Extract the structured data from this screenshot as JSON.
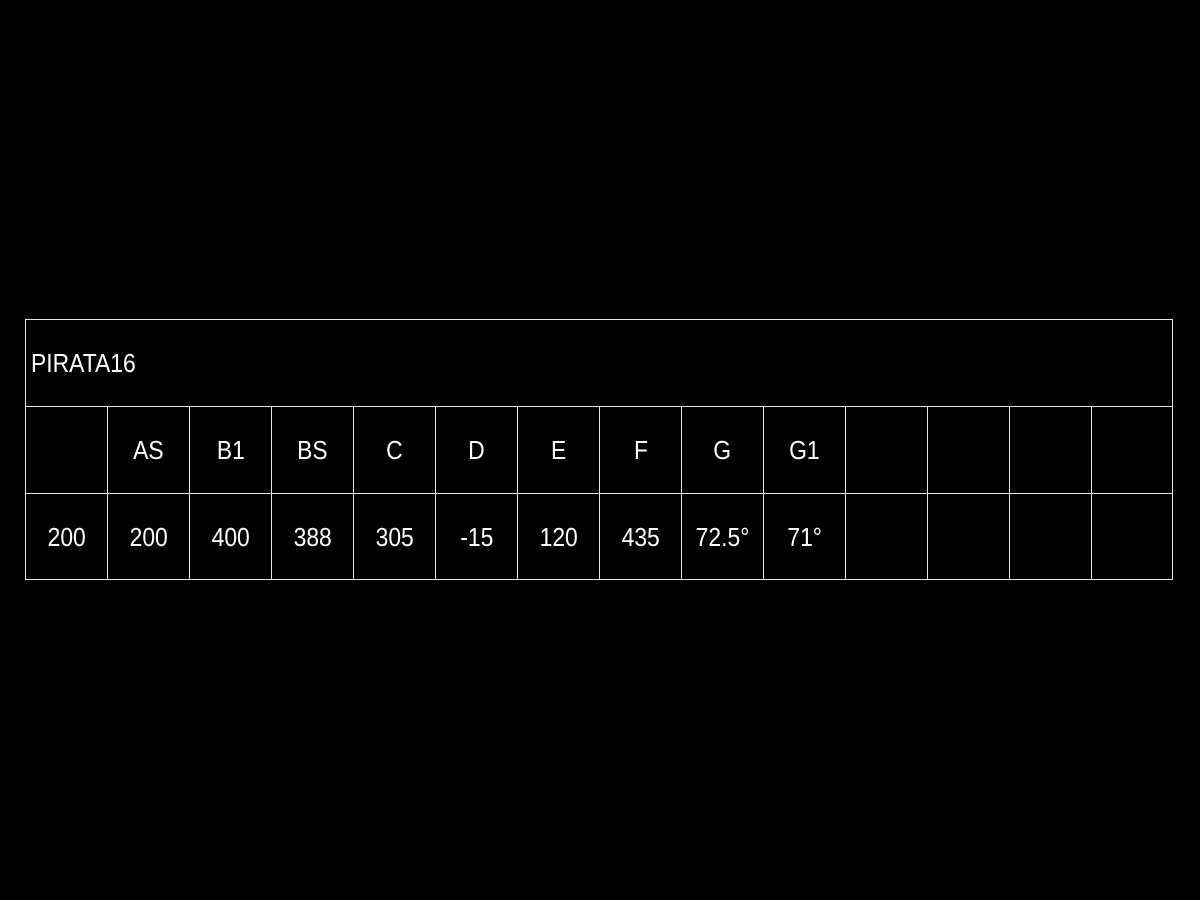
{
  "title": "PIRATA16",
  "headers": [
    "",
    "AS",
    "B1",
    "BS",
    "C",
    "D",
    "E",
    "F",
    "G",
    "G1",
    "",
    "",
    "",
    ""
  ],
  "values": [
    "200",
    "200",
    "400",
    "388",
    "305",
    "-15",
    "120",
    "435",
    "72.5°",
    "71°",
    "",
    "",
    "",
    ""
  ],
  "colors": {
    "background": "#000000",
    "lines": "#e6e6e6",
    "text": "#ffffff"
  }
}
